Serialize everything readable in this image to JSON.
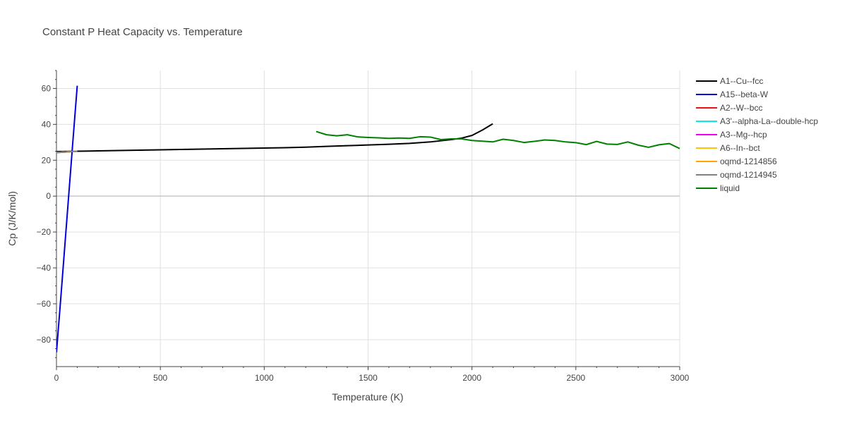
{
  "chart_data": {
    "type": "line",
    "title": "Constant P Heat Capacity vs. Temperature",
    "xlabel": "Temperature (K)",
    "ylabel": "Cp (J/K/mol)",
    "xlim": [
      0,
      3000
    ],
    "ylim": [
      -95,
      70
    ],
    "xticks": [
      0,
      500,
      1000,
      1500,
      2000,
      2500,
      3000
    ],
    "xtick_labels": [
      "0",
      "500",
      "1000",
      "1500",
      "2000",
      "2500",
      "3000"
    ],
    "yticks": [
      -80,
      -60,
      -40,
      -20,
      0,
      20,
      40,
      60
    ],
    "ytick_labels": [
      "−80",
      "−60",
      "−40",
      "−20",
      "0",
      "20",
      "40",
      "60"
    ],
    "grid": true,
    "legend_position": "right",
    "series": [
      {
        "name": "A1--Cu--fcc",
        "color": "#000000",
        "x": [
          0,
          100,
          200,
          300,
          400,
          500,
          600,
          700,
          800,
          900,
          1000,
          1100,
          1200,
          1300,
          1400,
          1500,
          1600,
          1700,
          1800,
          1900,
          1950,
          2000,
          2050,
          2100
        ],
        "y": [
          24.8,
          25.0,
          25.2,
          25.4,
          25.6,
          25.8,
          26.0,
          26.2,
          26.4,
          26.6,
          26.8,
          27.0,
          27.3,
          27.7,
          28.1,
          28.5,
          28.9,
          29.4,
          30.2,
          31.5,
          32.3,
          33.8,
          36.8,
          40.3
        ]
      },
      {
        "name": "A15--beta-W",
        "color": "#0000dd",
        "x": [
          0,
          20,
          40,
          60,
          80,
          100
        ],
        "y": [
          -87,
          -58,
          -28,
          2,
          32,
          61.5
        ]
      },
      {
        "name": "A2--W--bcc",
        "color": "#ee1111",
        "x": [
          0,
          100
        ],
        "y": [
          24.3,
          25.0
        ]
      },
      {
        "name": "A3'--alpha-La--double-hcp",
        "color": "#00eeee",
        "x": [
          0,
          100
        ],
        "y": [
          24.3,
          25.0
        ]
      },
      {
        "name": "A3--Mg--hcp",
        "color": "#ee00ee",
        "x": [
          0,
          100
        ],
        "y": [
          24.3,
          25.0
        ]
      },
      {
        "name": "A6--In--bct",
        "color": "#ffc400",
        "x": [
          0,
          100
        ],
        "y": [
          24.3,
          25.0
        ]
      },
      {
        "name": "oqmd-1214856",
        "color": "#ffa500",
        "x": [
          0,
          100
        ],
        "y": [
          24.3,
          25.0
        ]
      },
      {
        "name": "oqmd-1214945",
        "color": "#808080",
        "x": [
          0,
          100
        ],
        "y": [
          24.3,
          25.0
        ]
      },
      {
        "name": "liquid",
        "color": "#008000",
        "x": [
          1250,
          1300,
          1350,
          1400,
          1450,
          1500,
          1550,
          1600,
          1650,
          1700,
          1750,
          1800,
          1850,
          1900,
          1950,
          2000,
          2050,
          2100,
          2150,
          2200,
          2250,
          2300,
          2350,
          2400,
          2450,
          2500,
          2550,
          2600,
          2650,
          2700,
          2750,
          2800,
          2850,
          2900,
          2950,
          3000
        ],
        "y": [
          36.0,
          34.2,
          33.6,
          34.2,
          33.0,
          32.7,
          32.5,
          32.2,
          32.4,
          32.2,
          33.1,
          32.9,
          31.5,
          31.9,
          31.9,
          31.0,
          30.6,
          30.2,
          31.7,
          31.0,
          29.9,
          30.5,
          31.3,
          31.0,
          30.2,
          29.8,
          28.7,
          30.5,
          29.0,
          28.8,
          30.2,
          28.4,
          27.2,
          28.6,
          29.3,
          26.5
        ]
      }
    ]
  }
}
